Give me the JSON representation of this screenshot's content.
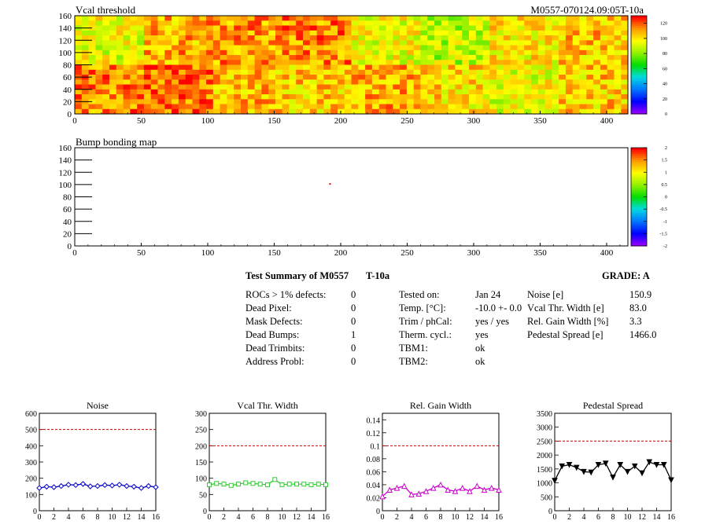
{
  "maps": [
    {
      "title": "Vcal threshold",
      "id_label": "M0557-070124.09:05T-10a",
      "y_ticks": [
        "0",
        "20",
        "40",
        "60",
        "80",
        "100",
        "120",
        "140",
        "160"
      ],
      "x_ticks": [
        "0",
        "50",
        "100",
        "150",
        "200",
        "250",
        "300",
        "350",
        "400"
      ],
      "palette_ticks": [
        "0",
        "20",
        "40",
        "60",
        "80",
        "100",
        "120"
      ]
    },
    {
      "title": "Bump bonding map",
      "y_ticks": [
        "0",
        "20",
        "40",
        "60",
        "80",
        "100",
        "120",
        "140",
        "160"
      ],
      "x_ticks": [
        "0",
        "50",
        "100",
        "150",
        "200",
        "250",
        "300",
        "350",
        "400"
      ],
      "palette_ticks": [
        "-2",
        "-1.5",
        "-1",
        "-0.5",
        "0",
        "0.5",
        "1",
        "1.5",
        "2"
      ]
    }
  ],
  "summary": {
    "title": "Test Summary of M0557",
    "temp_tag": "T-10a",
    "grade": "GRADE:  A",
    "defects": [
      {
        "label": "ROCs > 1% defects:",
        "value": "0"
      },
      {
        "label": "Dead Pixel:",
        "value": "0"
      },
      {
        "label": "Mask Defects:",
        "value": "0"
      },
      {
        "label": "Dead Bumps:",
        "value": "1"
      },
      {
        "label": "Dead Trimbits:",
        "value": "0"
      },
      {
        "label": "Address Probl:",
        "value": "0"
      }
    ],
    "conditions": [
      {
        "label": "Tested on:",
        "value": "Jan 24"
      },
      {
        "label": "Temp. [°C]:",
        "value": "-10.0 +- 0.0"
      },
      {
        "label": "Trim / phCal:",
        "value": "yes / yes"
      },
      {
        "label": "Therm. cycl.:",
        "value": "yes"
      },
      {
        "label": "TBM1:",
        "value": "ok"
      },
      {
        "label": "TBM2:",
        "value": "ok"
      }
    ],
    "results": [
      {
        "label": "Noise [e]",
        "value": "150.9"
      },
      {
        "label": "Vcal Thr. Width [e]",
        "value": "83.0"
      },
      {
        "label": "Rel. Gain Width [%]",
        "value": "3.3"
      },
      {
        "label": "Pedestal Spread [e]",
        "value": "1466.0"
      }
    ]
  },
  "chart_data": [
    {
      "type": "heatmap",
      "title": "Vcal threshold",
      "x_range": [
        0,
        416
      ],
      "y_range": [
        0,
        160
      ],
      "z_range": [
        0,
        130
      ],
      "roc_grid": {
        "cols": 8,
        "rows": 2
      },
      "roc_mean_top": [
        95,
        110,
        112,
        115,
        96,
        88,
        100,
        108
      ],
      "roc_mean_bottom": [
        115,
        118,
        108,
        105,
        110,
        102,
        95,
        105
      ]
    },
    {
      "type": "heatmap",
      "title": "Bump bonding map",
      "x_range": [
        0,
        416
      ],
      "y_range": [
        0,
        160
      ],
      "z_range": [
        -2,
        2
      ],
      "points": [
        {
          "x": 192,
          "y": 101,
          "z": 2
        }
      ]
    },
    {
      "type": "line",
      "title": "Noise",
      "x_ticks": [
        0,
        2,
        4,
        6,
        8,
        10,
        12,
        14,
        16
      ],
      "xlim": [
        0,
        16
      ],
      "ylim": [
        0,
        600
      ],
      "y_ticks": [
        0,
        100,
        200,
        300,
        400,
        500,
        600
      ],
      "threshold": 500,
      "color": "#0000cc",
      "marker": "diamond",
      "x": [
        0,
        1,
        2,
        3,
        4,
        5,
        6,
        7,
        8,
        9,
        10,
        11,
        12,
        13,
        14,
        15,
        16
      ],
      "values": [
        140,
        148,
        145,
        152,
        160,
        158,
        165,
        150,
        152,
        158,
        155,
        160,
        152,
        148,
        140,
        152,
        145
      ]
    },
    {
      "type": "line",
      "title": "Vcal Thr. Width",
      "x_ticks": [
        0,
        2,
        4,
        6,
        8,
        10,
        12,
        14,
        16
      ],
      "xlim": [
        0,
        16
      ],
      "ylim": [
        0,
        300
      ],
      "y_ticks": [
        0,
        50,
        100,
        150,
        200,
        250,
        300
      ],
      "threshold": 200,
      "color": "#33cc33",
      "marker": "square",
      "x": [
        0,
        1,
        2,
        3,
        4,
        5,
        6,
        7,
        8,
        9,
        10,
        11,
        12,
        13,
        14,
        15,
        16
      ],
      "values": [
        80,
        84,
        82,
        78,
        82,
        86,
        84,
        82,
        80,
        96,
        80,
        82,
        82,
        82,
        80,
        82,
        80
      ]
    },
    {
      "type": "line",
      "title": "Rel. Gain Width",
      "x_ticks": [
        0,
        2,
        4,
        6,
        8,
        10,
        12,
        14,
        16
      ],
      "xlim": [
        0,
        16
      ],
      "ylim": [
        0,
        0.15
      ],
      "y_ticks": [
        0,
        0.02,
        0.04,
        0.06,
        0.08,
        0.1,
        0.12,
        0.14
      ],
      "threshold": 0.1,
      "color": "#cc00cc",
      "marker": "triangle",
      "x": [
        0,
        1,
        2,
        3,
        4,
        5,
        6,
        7,
        8,
        9,
        10,
        11,
        12,
        13,
        14,
        15,
        16
      ],
      "values": [
        0.022,
        0.032,
        0.035,
        0.038,
        0.025,
        0.026,
        0.03,
        0.035,
        0.04,
        0.032,
        0.03,
        0.035,
        0.03,
        0.038,
        0.032,
        0.035,
        0.032
      ]
    },
    {
      "type": "line",
      "title": "Pedestal Spread",
      "x_ticks": [
        0,
        2,
        4,
        6,
        8,
        10,
        12,
        14,
        16
      ],
      "xlim": [
        0,
        16
      ],
      "ylim": [
        0,
        3500
      ],
      "y_ticks": [
        0,
        500,
        1000,
        1500,
        2000,
        2500,
        3000,
        3500
      ],
      "threshold": 2500,
      "color": "#000000",
      "marker": "triangle-down",
      "x": [
        0,
        1,
        2,
        3,
        4,
        5,
        6,
        7,
        8,
        9,
        10,
        11,
        12,
        13,
        14,
        15,
        16
      ],
      "values": [
        1080,
        1600,
        1650,
        1550,
        1400,
        1380,
        1650,
        1700,
        1200,
        1650,
        1400,
        1600,
        1350,
        1750,
        1650,
        1650,
        1100
      ]
    }
  ]
}
